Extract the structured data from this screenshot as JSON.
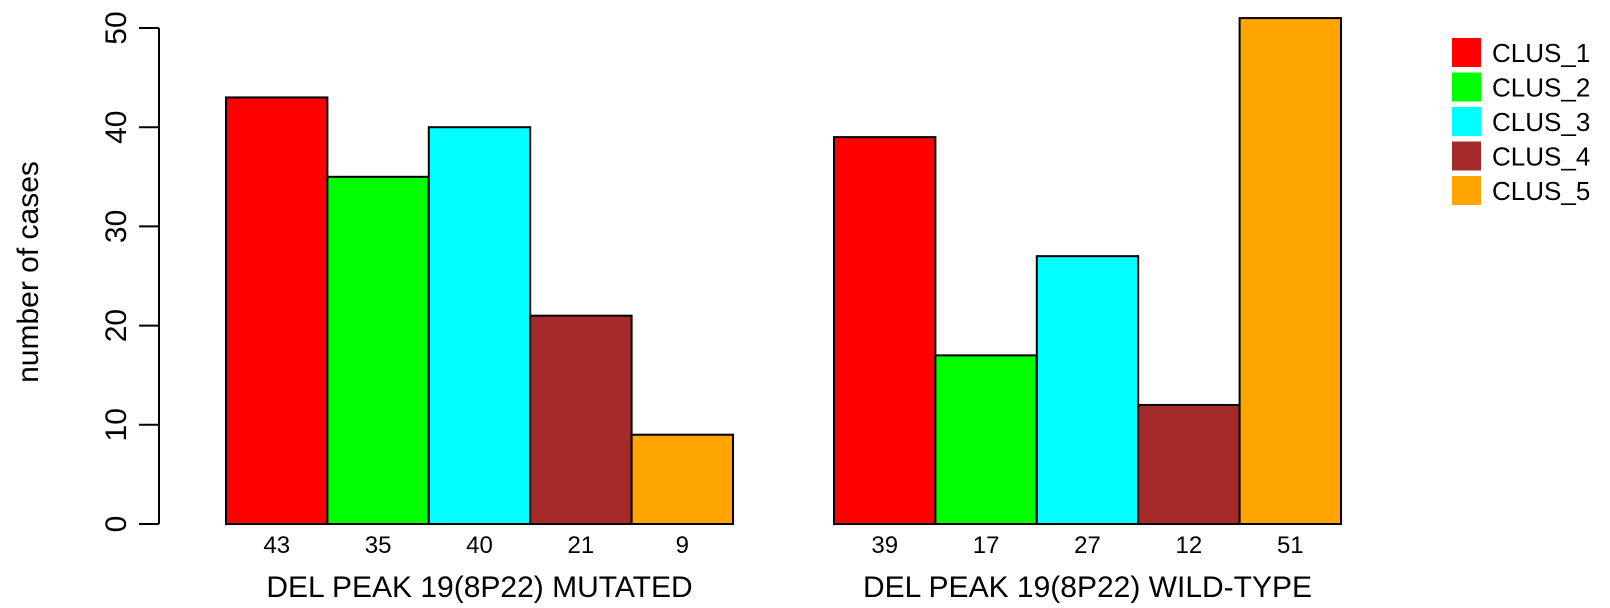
{
  "chart_data": {
    "type": "bar",
    "ylabel": "number of cases",
    "ylim": [
      0,
      50
    ],
    "yticks": [
      0,
      10,
      20,
      30,
      40,
      50
    ],
    "groups": [
      {
        "label": "DEL PEAK 19(8P22) MUTATED",
        "values": [
          43,
          35,
          40,
          21,
          9
        ]
      },
      {
        "label": "DEL PEAK 19(8P22) WILD-TYPE",
        "values": [
          39,
          17,
          27,
          12,
          51
        ]
      }
    ],
    "series": [
      {
        "name": "CLUS_1",
        "color": "#ff0000"
      },
      {
        "name": "CLUS_2",
        "color": "#00ff00"
      },
      {
        "name": "CLUS_3",
        "color": "#00ffff"
      },
      {
        "name": "CLUS_4",
        "color": "#a52a2a"
      },
      {
        "name": "CLUS_5",
        "color": "#ffa500"
      }
    ],
    "legend_position": "top-right",
    "grid": false,
    "bar_value_labels": "below-axis"
  }
}
